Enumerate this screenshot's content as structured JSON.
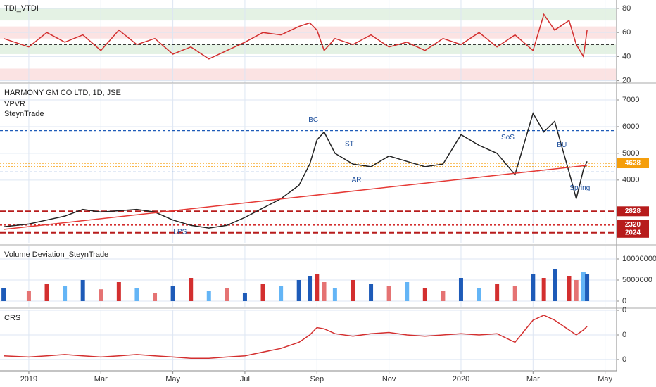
{
  "chart_data": [
    {
      "type": "line",
      "title": "TDI_VTDI",
      "xlim": [
        -0.8,
        16.3
      ],
      "ylim": [
        18,
        87
      ],
      "yticks": [
        80,
        60,
        40,
        20
      ],
      "zones": [
        {
          "from": 70,
          "to": 80,
          "color": "#e4f2e4"
        },
        {
          "from": 55,
          "to": 65,
          "color": "#fbe3e3"
        },
        {
          "from": 42,
          "to": 50,
          "color": "#e4f2e4"
        },
        {
          "from": 20,
          "to": 30,
          "color": "#fbe3e3"
        }
      ],
      "levels": [
        {
          "value": 50,
          "color": "#222",
          "dash": "4 3"
        }
      ],
      "x": [
        -0.7,
        0,
        0.5,
        1,
        1.5,
        2,
        2.5,
        3,
        3.5,
        4,
        4.5,
        5,
        5.5,
        6,
        6.5,
        7,
        7.5,
        7.8,
        8,
        8.2,
        8.5,
        9,
        9.5,
        10,
        10.5,
        11,
        11.5,
        12,
        12.5,
        13,
        13.5,
        14,
        14.3,
        14.6,
        15,
        15.2,
        15.4,
        15.5
      ],
      "series": [
        {
          "color": "#d32f2f",
          "values": [
            55,
            48,
            60,
            52,
            58,
            45,
            62,
            50,
            55,
            42,
            48,
            38,
            45,
            52,
            60,
            58,
            65,
            68,
            62,
            45,
            55,
            50,
            58,
            48,
            52,
            45,
            55,
            50,
            60,
            48,
            58,
            45,
            75,
            62,
            70,
            50,
            40,
            62
          ]
        }
      ]
    },
    {
      "type": "line",
      "title": "HARMONY GM CO LTD, 1D, JSE",
      "subtitles": [
        "VPVR",
        "SteynTrade"
      ],
      "xlim": [
        -0.8,
        16.3
      ],
      "ylim": [
        1650,
        7580
      ],
      "yticks": [
        7000,
        6000,
        5000,
        4000
      ],
      "levels": [
        {
          "value": 5850,
          "color": "#1e5bb8",
          "dash": "4 3"
        },
        {
          "value": 4300,
          "color": "#1e5bb8",
          "dash": "4 3"
        },
        {
          "value": 4628,
          "color": "#f59e0b",
          "dash": "2 2",
          "box": "#f59e0b",
          "labelled": true
        },
        {
          "value": 4500,
          "color": "#f59e0b",
          "dash": "2 2"
        },
        {
          "value": 2828,
          "color": "#b71c1c",
          "dash": "8 4",
          "box": "#b71c1c",
          "labelled": true
        },
        {
          "value": 2320,
          "color": "#d32f2f",
          "dash": "3 3",
          "box": "#b71c1c",
          "labelled": true
        },
        {
          "value": 2024,
          "color": "#b71c1c",
          "dash": "8 4",
          "box": "#b71c1c",
          "labelled": true
        }
      ],
      "x": [
        -0.7,
        0,
        0.5,
        1,
        1.5,
        2,
        2.5,
        3,
        3.5,
        4,
        4.5,
        5,
        5.5,
        6,
        6.5,
        7,
        7.5,
        7.8,
        8,
        8.2,
        8.5,
        9,
        9.5,
        10,
        10.5,
        11,
        11.5,
        12,
        12.5,
        13,
        13.5,
        14,
        14.3,
        14.6,
        15,
        15.2,
        15.4,
        15.5
      ],
      "series": [
        {
          "color": "#222",
          "values": [
            2250,
            2350,
            2500,
            2650,
            2900,
            2800,
            2850,
            2900,
            2800,
            2500,
            2300,
            2200,
            2300,
            2600,
            2950,
            3300,
            3800,
            4600,
            5500,
            5800,
            5000,
            4600,
            4500,
            4900,
            4700,
            4500,
            4600,
            5700,
            5300,
            5000,
            4200,
            6500,
            5800,
            6200,
            4300,
            3300,
            4400,
            4700
          ]
        },
        {
          "color": "#e53935",
          "x": [
            -0.7,
            15.5
          ],
          "values": [
            2150,
            4550
          ]
        }
      ],
      "annotations": [
        {
          "text": "BC",
          "x": 7.9,
          "y": 6250
        },
        {
          "text": "ST",
          "x": 8.9,
          "y": 5350
        },
        {
          "text": "AR",
          "x": 9.1,
          "y": 4000
        },
        {
          "text": "SoS",
          "x": 13.3,
          "y": 5600
        },
        {
          "text": "BU",
          "x": 14.8,
          "y": 5300
        },
        {
          "text": "Spring",
          "x": 15.3,
          "y": 3700
        },
        {
          "text": "LPS",
          "x": 4.2,
          "y": 2050
        }
      ]
    },
    {
      "type": "bar",
      "title": "Volume Deviation_SteynTrade",
      "xlim": [
        -0.8,
        16.3
      ],
      "ylim": [
        -1500000,
        13000000
      ],
      "yticks": [
        10000000,
        5000000,
        0
      ],
      "x": [
        -0.7,
        0,
        0.5,
        1,
        1.5,
        2,
        2.5,
        3,
        3.5,
        4,
        4.5,
        5,
        5.5,
        6,
        6.5,
        7,
        7.5,
        7.8,
        8,
        8.2,
        8.5,
        9,
        9.5,
        10,
        10.5,
        11,
        11.5,
        12,
        12.5,
        13,
        13.5,
        14,
        14.3,
        14.6,
        15,
        15.2,
        15.4,
        15.5
      ],
      "values": [
        3000000,
        2500000,
        4000000,
        3500000,
        5000000,
        2800000,
        4500000,
        3000000,
        2000000,
        3500000,
        5500000,
        2500000,
        3000000,
        2000000,
        4000000,
        3500000,
        5000000,
        6000000,
        6500000,
        4500000,
        3000000,
        5000000,
        4000000,
        3500000,
        4500000,
        3000000,
        2500000,
        5500000,
        3000000,
        4000000,
        3500000,
        6500000,
        5500000,
        7500000,
        6000000,
        5000000,
        7000000,
        6500000
      ],
      "colors": [
        "#1e5bb8",
        "#e57373",
        "#d32f2f",
        "#64b5f6",
        "#1e5bb8",
        "#e57373",
        "#d32f2f",
        "#64b5f6",
        "#e57373",
        "#1e5bb8",
        "#d32f2f",
        "#64b5f6",
        "#e57373",
        "#1e5bb8",
        "#d32f2f",
        "#64b5f6",
        "#1e5bb8",
        "#1e5bb8",
        "#d32f2f",
        "#e57373",
        "#64b5f6",
        "#d32f2f",
        "#1e5bb8",
        "#e57373",
        "#64b5f6",
        "#d32f2f",
        "#e57373",
        "#1e5bb8",
        "#64b5f6",
        "#d32f2f",
        "#e57373",
        "#1e5bb8",
        "#d32f2f",
        "#1e5bb8",
        "#d32f2f",
        "#e57373",
        "#64b5f6",
        "#1e5bb8"
      ]
    },
    {
      "type": "line",
      "title": "CRS",
      "xlim": [
        -0.8,
        16.3
      ],
      "ylim": [
        -1.46,
        1.03
      ],
      "yticks": [
        {
          "value": 1,
          "label": "0"
        },
        {
          "value": 0,
          "label": "0"
        },
        {
          "value": -1,
          "label": "0"
        }
      ],
      "xticks": [
        {
          "value": 0,
          "label": "2019"
        },
        {
          "value": 2,
          "label": "Mar"
        },
        {
          "value": 4,
          "label": "May"
        },
        {
          "value": 6,
          "label": "Jul"
        },
        {
          "value": 8,
          "label": "Sep"
        },
        {
          "value": 10,
          "label": "Nov"
        },
        {
          "value": 12,
          "label": "2020"
        },
        {
          "value": 14,
          "label": "Mar"
        },
        {
          "value": 16,
          "label": "May"
        }
      ],
      "x": [
        -0.7,
        0,
        0.5,
        1,
        1.5,
        2,
        2.5,
        3,
        3.5,
        4,
        4.5,
        5,
        5.5,
        6,
        6.5,
        7,
        7.5,
        7.8,
        8,
        8.2,
        8.5,
        9,
        9.5,
        10,
        10.5,
        11,
        11.5,
        12,
        12.5,
        13,
        13.5,
        14,
        14.3,
        14.6,
        15,
        15.2,
        15.4,
        15.5
      ],
      "series": [
        {
          "color": "#d32f2f",
          "values": [
            -0.85,
            -0.9,
            -0.85,
            -0.8,
            -0.85,
            -0.9,
            -0.85,
            -0.8,
            -0.85,
            -0.9,
            -0.95,
            -0.95,
            -0.9,
            -0.85,
            -0.7,
            -0.55,
            -0.3,
            0,
            0.3,
            0.25,
            0.05,
            -0.05,
            0.05,
            0.1,
            0,
            -0.05,
            0,
            0.05,
            0,
            0.05,
            -0.3,
            0.6,
            0.8,
            0.6,
            0.2,
            0,
            0.2,
            0.35
          ]
        }
      ]
    }
  ]
}
